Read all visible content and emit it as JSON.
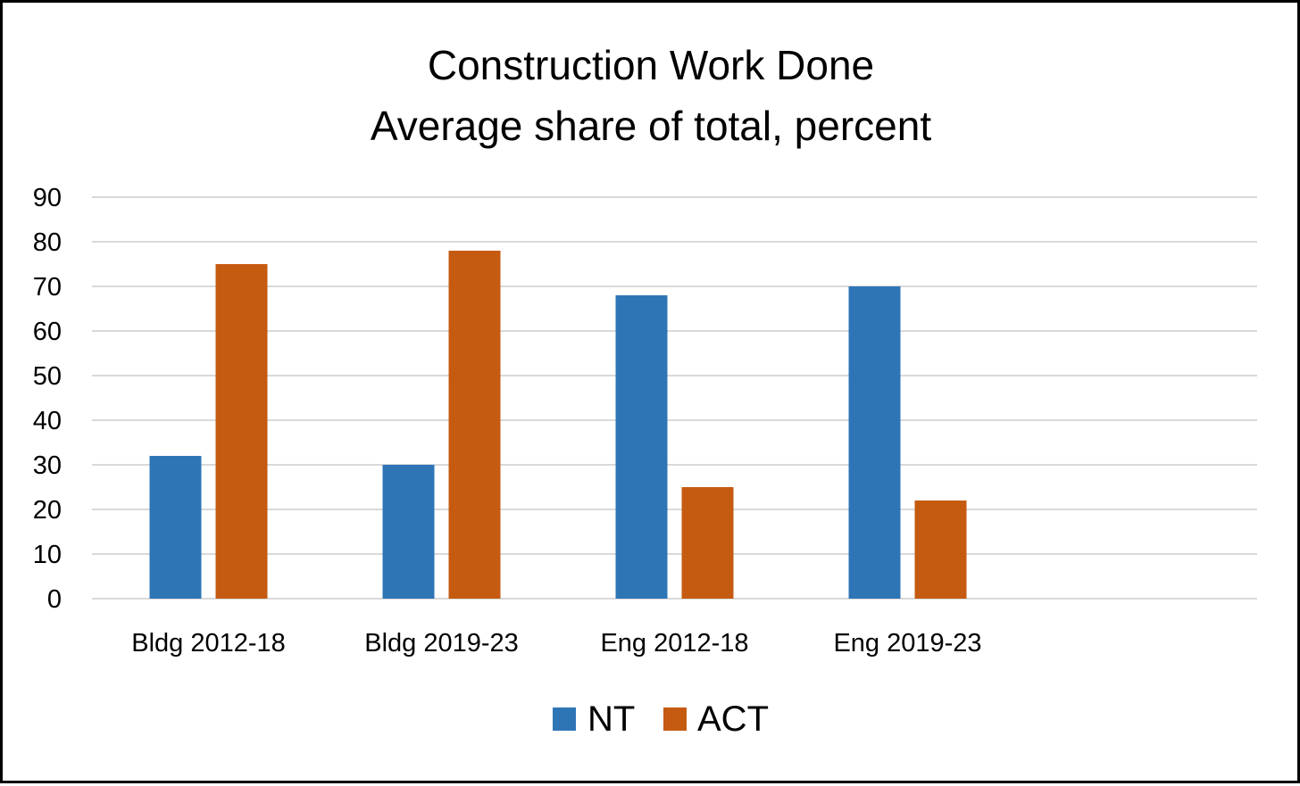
{
  "chart_data": {
    "type": "bar",
    "title": "Construction Work Done",
    "subtitle": "Average share of total, percent",
    "categories": [
      "Bldg 2012-18",
      "Bldg 2019-23",
      "Eng 2012-18",
      "Eng 2019-23"
    ],
    "series": [
      {
        "name": "NT",
        "color": "#2e75b6",
        "values": [
          32,
          30,
          68,
          70
        ]
      },
      {
        "name": "ACT",
        "color": "#c55a11",
        "values": [
          75,
          78,
          25,
          22
        ]
      }
    ],
    "ylim": [
      0,
      90
    ],
    "yticks": [
      "0",
      "10",
      "20",
      "30",
      "40",
      "50",
      "60",
      "70",
      "80",
      "90"
    ],
    "grid": true,
    "legend": "bottom"
  }
}
